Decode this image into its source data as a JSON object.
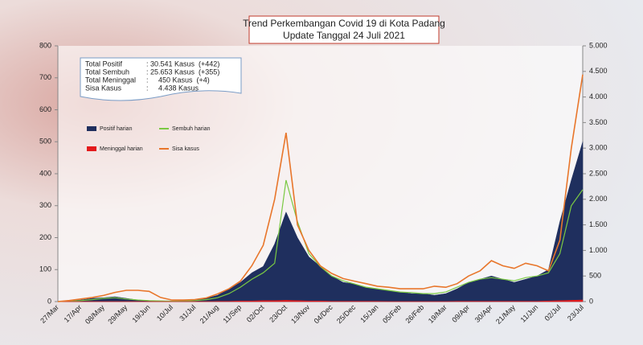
{
  "chart_data": {
    "type": "line",
    "title": "Trend Perkembangan Covid 19 di Kota Padang",
    "subtitle": "Update Tanggal  24 Juli 2021",
    "categories": [
      "27/Mar",
      null,
      "17/Apr",
      null,
      "08/May",
      null,
      "29/May",
      null,
      "19/Jun",
      null,
      "10/Jul",
      null,
      "31/Jul",
      null,
      "21/Aug",
      null,
      "11/Sep",
      null,
      "02/Oct",
      null,
      "23/Oct",
      null,
      "13/Nov",
      null,
      "04/Dec",
      null,
      "25/Dec",
      null,
      "15/Jan",
      null,
      "05/Feb",
      null,
      "26/Feb",
      null,
      "19/Mar",
      null,
      "09/Apr",
      null,
      "30/Apr",
      null,
      "21/May",
      null,
      "11/Jun",
      null,
      "02/Jul",
      null,
      "23/Jul"
    ],
    "series": [
      {
        "name": "Positif harian",
        "color": "#1f2f5e",
        "style": "area",
        "values": [
          0,
          3,
          5,
          10,
          12,
          15,
          10,
          5,
          3,
          2,
          2,
          3,
          5,
          10,
          20,
          40,
          60,
          90,
          110,
          180,
          280,
          200,
          140,
          110,
          80,
          60,
          55,
          45,
          40,
          35,
          30,
          25,
          25,
          20,
          25,
          40,
          60,
          70,
          80,
          70,
          60,
          70,
          80,
          100,
          250,
          380,
          500
        ]
      },
      {
        "name": "Sembuh harian",
        "color": "#7ac943",
        "style": "line",
        "values": [
          0,
          1,
          3,
          6,
          10,
          12,
          8,
          5,
          3,
          2,
          1,
          2,
          3,
          6,
          12,
          25,
          45,
          70,
          90,
          120,
          380,
          250,
          150,
          110,
          80,
          65,
          55,
          45,
          40,
          35,
          30,
          28,
          25,
          25,
          30,
          45,
          60,
          70,
          75,
          70,
          65,
          75,
          80,
          90,
          150,
          300,
          350
        ]
      },
      {
        "name": "Meninggal harian",
        "color": "#e31a1c",
        "style": "area",
        "values": [
          0,
          0,
          0,
          0,
          0,
          0,
          0,
          0,
          0,
          0,
          0,
          0,
          0,
          0,
          1,
          1,
          2,
          2,
          3,
          3,
          4,
          3,
          2,
          2,
          1,
          1,
          1,
          1,
          1,
          0,
          0,
          0,
          0,
          0,
          0,
          1,
          1,
          1,
          1,
          1,
          1,
          1,
          1,
          2,
          3,
          4,
          5
        ]
      },
      {
        "name": "Sisa kasus",
        "color": "#e8762b",
        "style": "line",
        "axis": "y2",
        "values": [
          0,
          20,
          50,
          80,
          120,
          180,
          220,
          220,
          200,
          80,
          30,
          30,
          40,
          70,
          150,
          250,
          400,
          700,
          1100,
          2000,
          3300,
          1500,
          1000,
          700,
          550,
          450,
          400,
          350,
          300,
          280,
          250,
          250,
          250,
          300,
          280,
          350,
          500,
          600,
          800,
          700,
          650,
          750,
          700,
          600,
          1200,
          3000,
          4438
        ]
      }
    ],
    "ylim": [
      0,
      800
    ],
    "yticks": [
      0,
      100,
      200,
      300,
      400,
      500,
      600,
      700,
      800
    ],
    "y2lim": [
      0,
      5000
    ],
    "y2ticks": [
      0,
      {
        "value": 500,
        "label": "500"
      },
      {
        "value": 1000,
        "label": "1.000"
      },
      {
        "value": 1500,
        "label": "1.500"
      },
      {
        "value": 2000,
        "label": "2.000"
      },
      {
        "value": 2500,
        "label": "2.500"
      },
      {
        "value": 3000,
        "label": "3.000"
      },
      {
        "value": 3500,
        "label": "3.500"
      },
      {
        "value": 4000,
        "label": "4.000"
      },
      {
        "value": 4500,
        "label": "4.500"
      },
      {
        "value": 5000,
        "label": "5.000"
      }
    ],
    "summary": [
      [
        "Total Positif",
        ": 30.541 Kasus  (+442)"
      ],
      [
        "Total Sembuh",
        ": 25.653 Kasus  (+355)"
      ],
      [
        "Total Meninggal",
        ":     450 Kasus  (+4)"
      ],
      [
        "Sisa Kasus",
        ":     4.438 Kasus"
      ]
    ]
  }
}
